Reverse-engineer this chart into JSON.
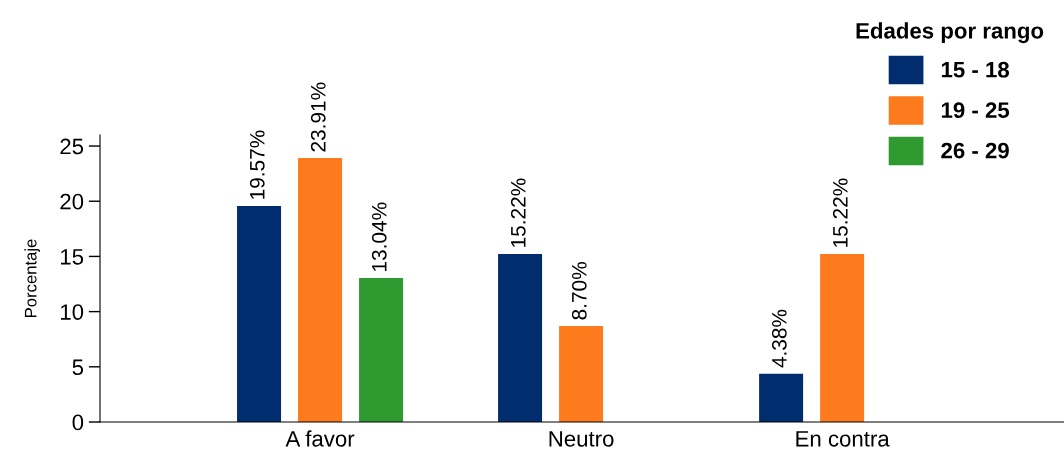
{
  "chart_data": {
    "type": "bar",
    "ylabel": "Porcentaje",
    "legend_title": "Edades por rango",
    "categories": [
      "A favor",
      "Neutro",
      "En contra"
    ],
    "series": [
      {
        "name": "15 - 18",
        "color": "#012c6e",
        "values": [
          19.57,
          15.22,
          4.38
        ],
        "value_labels": [
          "19.57%",
          "15.22%",
          "4.38%"
        ]
      },
      {
        "name": "19 - 25",
        "color": "#fd7b1c",
        "values": [
          23.91,
          8.7,
          15.22
        ],
        "value_labels": [
          "23.91%",
          "8.70%",
          "15.22%"
        ]
      },
      {
        "name": "26 - 29",
        "color": "#2f9a2f",
        "values": [
          13.04,
          null,
          null
        ],
        "value_labels": [
          "13.04%",
          null,
          null
        ]
      }
    ],
    "ylim": [
      0,
      26
    ],
    "yticks": [
      0,
      5,
      10,
      15,
      20,
      25
    ],
    "legend": "top right",
    "grid": false
  }
}
